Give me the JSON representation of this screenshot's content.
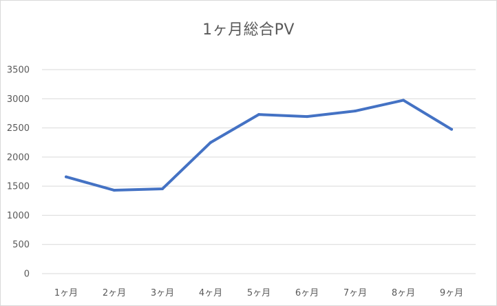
{
  "chart_data": {
    "type": "line",
    "title": "1ヶ月総合PV",
    "categories": [
      "1ヶ月",
      "2ヶ月",
      "3ヶ月",
      "4ヶ月",
      "5ヶ月",
      "6ヶ月",
      "7ヶ月",
      "8ヶ月",
      "9ヶ月"
    ],
    "series": [
      {
        "values": [
          1660,
          1430,
          1455,
          2250,
          2730,
          2695,
          2790,
          2975,
          2475
        ],
        "color": "#4472c4"
      }
    ],
    "xlabel": "",
    "ylabel": "",
    "ylim": [
      0,
      3500
    ],
    "yticks": [
      0,
      500,
      1000,
      1500,
      2000,
      2500,
      3000,
      3500
    ],
    "grid": true,
    "legend": "none",
    "gridline_color": "#d9d9d9"
  }
}
